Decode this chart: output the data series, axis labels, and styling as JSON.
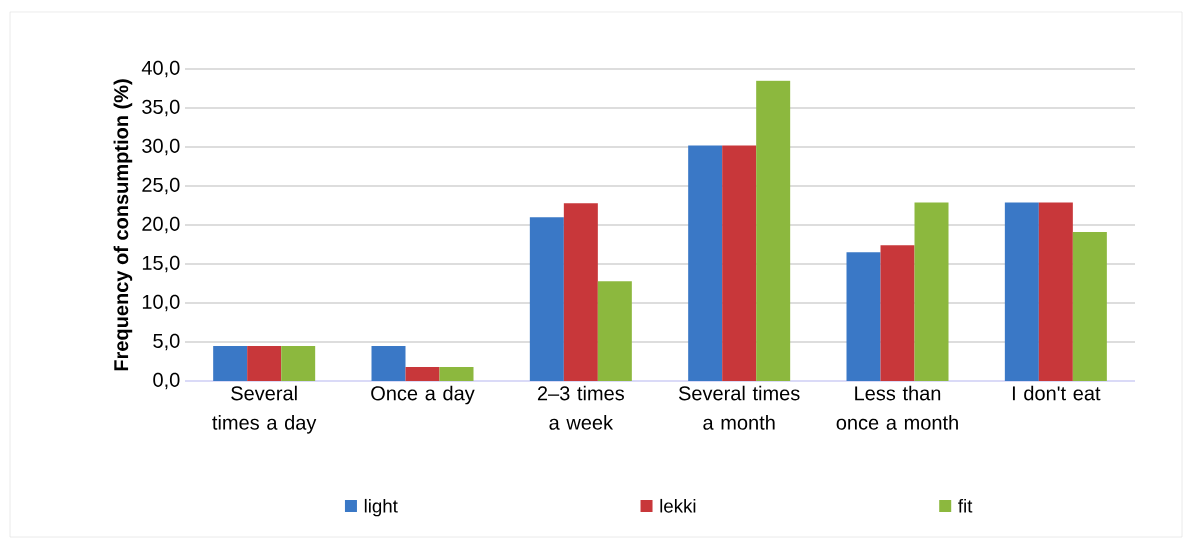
{
  "chart_data": {
    "type": "bar",
    "ylabel": "Frequency of consumption (%)",
    "categories": [
      "Several times a day",
      "Once a day",
      "2–3 times a week",
      "Several times a month",
      "Less than once a month",
      "I don't eat"
    ],
    "series": [
      {
        "name": "light",
        "color": "#3a78c6",
        "values": [
          4.5,
          4.5,
          21.0,
          30.2,
          16.5,
          22.9
        ]
      },
      {
        "name": "lekki",
        "color": "#c8373a",
        "values": [
          4.5,
          1.8,
          22.8,
          30.2,
          17.4,
          22.9
        ]
      },
      {
        "name": "fit",
        "color": "#8cb83e",
        "values": [
          4.5,
          1.8,
          12.8,
          38.5,
          22.9,
          19.1
        ]
      }
    ],
    "ylim": [
      0,
      40
    ],
    "yticks": [
      {
        "value": 0,
        "label": "0,0"
      },
      {
        "value": 5,
        "label": "5,0"
      },
      {
        "value": 10,
        "label": "10,0"
      },
      {
        "value": 15,
        "label": "15,0"
      },
      {
        "value": 20,
        "label": "20,0"
      },
      {
        "value": 25,
        "label": "25,0"
      },
      {
        "value": 30,
        "label": "30,0"
      },
      {
        "value": 35,
        "label": "35,0"
      },
      {
        "value": 40,
        "label": "40,0"
      }
    ],
    "grid": "y",
    "legend": "bottom"
  }
}
